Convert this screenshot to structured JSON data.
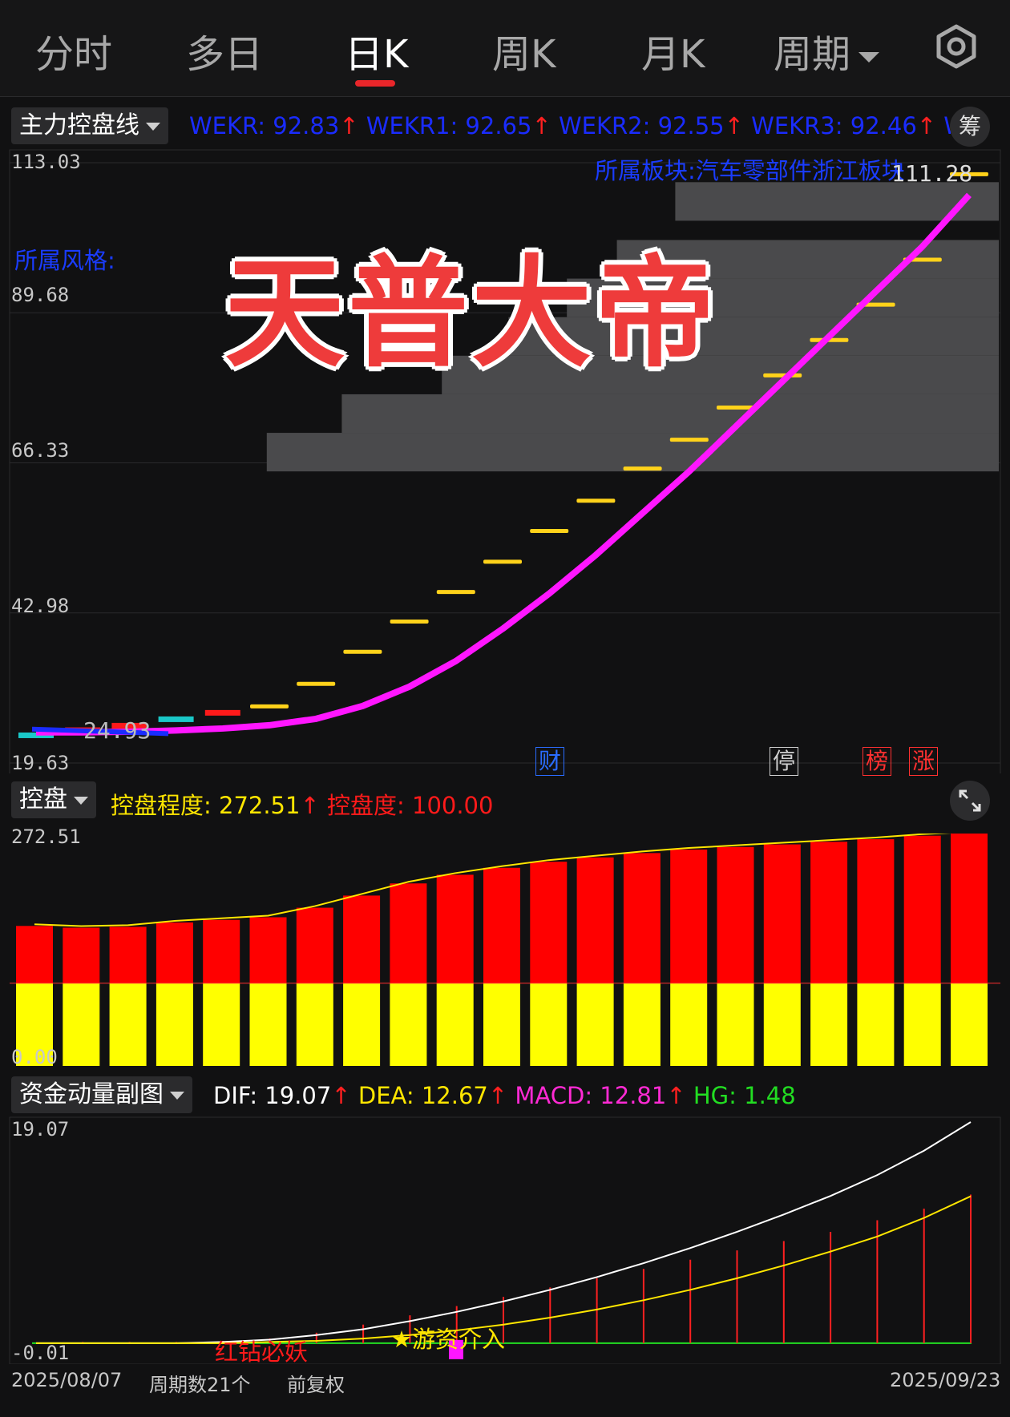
{
  "tabs": [
    {
      "label": "分时",
      "active": false
    },
    {
      "label": "多日",
      "active": false
    },
    {
      "label": "日K",
      "active": true
    },
    {
      "label": "周K",
      "active": false
    },
    {
      "label": "月K",
      "active": false
    },
    {
      "label": "周期",
      "active": false,
      "dropdown": true
    }
  ],
  "settings_icon": "gear-icon",
  "main_panel": {
    "selector": "主力控盘线",
    "indicators": [
      {
        "text": "WEKR: 92.83",
        "color": "#1a2cff"
      },
      {
        "text": "WEKR1: 92.65",
        "color": "#1a2cff"
      },
      {
        "text": "WEKR2: 92.55",
        "color": "#1a2cff"
      },
      {
        "text": "WEKR3: 92.46",
        "color": "#1a2cff"
      },
      {
        "text": "WEK",
        "color": "#1a2cff"
      }
    ],
    "chip_button": "筹",
    "y_labels": [
      "113.03",
      "89.68",
      "66.33",
      "42.98",
      "19.63"
    ],
    "style_label": "所属风格:",
    "sector_label": "所属板块:汽车零部件浙江板块",
    "high_label": "111.28",
    "low_label": "24.93",
    "title": "天普大帝",
    "tags": [
      {
        "text": "财",
        "color": "#2a6cff"
      },
      {
        "text": "停",
        "color": "#cfcfcf"
      },
      {
        "text": "榜",
        "color": "#ff3030"
      },
      {
        "text": "涨",
        "color": "#ff3030"
      }
    ]
  },
  "control_panel": {
    "selector": "控盘",
    "indicators": [
      {
        "text": "控盘程度: 272.51",
        "color": "#ffe600"
      },
      {
        "text": "控盘度: 100.00",
        "color": "#ff1a1a"
      }
    ],
    "y_top": "272.51",
    "y_bottom": "0.00",
    "expand_icon": "expand-icon"
  },
  "macd_panel": {
    "selector": "资金动量副图",
    "indicators": [
      {
        "text": "DIF: 19.07",
        "color": "#ffffff"
      },
      {
        "text": "DEA: 12.67",
        "color": "#ffe600"
      },
      {
        "text": "MACD: 12.81",
        "color": "#ff2ad4"
      },
      {
        "text": "HG: 1.48",
        "color": "#22dd22"
      }
    ],
    "y_top": "19.07",
    "y_bottom": "-0.01",
    "red_label": "红钻必妖",
    "yellow_label": "★游资介入"
  },
  "footer": {
    "start_date": "2025/08/07",
    "period_count": "周期数21个",
    "adjust": "前复权",
    "end_date": "2025/09/23"
  },
  "chart_data": [
    {
      "type": "line",
      "title": "",
      "ylim": [
        19.63,
        113.03
      ],
      "x": [
        1,
        2,
        3,
        4,
        5,
        6,
        7,
        8,
        9,
        10,
        11,
        12,
        13,
        14,
        15,
        16,
        17,
        18,
        19,
        20,
        21
      ],
      "series": [
        {
          "name": "",
          "color": "#ff16ff",
          "values": [
            24.4,
            24.4,
            24.5,
            24.7,
            25,
            25.5,
            26.5,
            28.5,
            31.5,
            35.5,
            40.5,
            46,
            52,
            58.5,
            65,
            72,
            79,
            86,
            93,
            100,
            108
          ]
        },
        {
          "name": "",
          "color": "#ffd21a",
          "values": [
            24,
            24.8,
            25.5,
            26.5,
            27.5,
            28.5,
            32,
            37,
            41.7,
            46.3,
            51,
            55.8,
            60.5,
            65.5,
            70,
            75,
            80,
            85.5,
            91,
            98,
            111.3
          ]
        }
      ]
    },
    {
      "type": "bar",
      "title": "",
      "ylim": [
        0,
        272.51
      ],
      "categories": [
        "1",
        "2",
        "3",
        "4",
        "5",
        "6",
        "7",
        "8",
        "9",
        "10",
        "11",
        "12",
        "13",
        "14",
        "15",
        "16",
        "17",
        "18",
        "19",
        "20",
        "21"
      ],
      "series": [
        {
          "name": "控盘度",
          "color": "#ffff00",
          "values": [
            100,
            100,
            100,
            100,
            100,
            100,
            100,
            100,
            100,
            100,
            100,
            100,
            100,
            100,
            100,
            100,
            100,
            100,
            100,
            100,
            100
          ]
        },
        {
          "name": "控盘程度",
          "color": "#ff0000",
          "values": [
            166,
            164,
            165,
            170,
            173,
            176,
            187,
            201,
            215,
            225,
            233,
            240,
            245,
            250,
            254,
            257,
            260,
            263,
            266,
            270,
            272.51
          ]
        }
      ]
    },
    {
      "type": "line",
      "title": "",
      "ylim": [
        -0.01,
        19.07
      ],
      "x": [
        1,
        2,
        3,
        4,
        5,
        6,
        7,
        8,
        9,
        10,
        11,
        12,
        13,
        14,
        15,
        16,
        17,
        18,
        19,
        20,
        21
      ],
      "series": [
        {
          "name": "DIF",
          "color": "#ffffff",
          "values": [
            0,
            0,
            0,
            0,
            0.1,
            0.3,
            0.7,
            1.2,
            1.9,
            2.7,
            3.6,
            4.6,
            5.7,
            6.9,
            8.2,
            9.6,
            11.1,
            12.7,
            14.5,
            16.6,
            19.07
          ]
        },
        {
          "name": "DEA",
          "color": "#ffe600",
          "values": [
            0,
            0,
            0,
            0,
            0,
            0.1,
            0.2,
            0.4,
            0.7,
            1.1,
            1.6,
            2.2,
            2.9,
            3.7,
            4.6,
            5.6,
            6.7,
            7.9,
            9.2,
            10.8,
            12.67
          ]
        },
        {
          "name": "MACD",
          "color": "#ff2020",
          "values": [
            0,
            0.1,
            0.1,
            0.1,
            0.2,
            0.4,
            0.9,
            1.6,
            2.4,
            3.2,
            4,
            4.8,
            5.6,
            6.4,
            7.2,
            8,
            8.8,
            9.6,
            10.6,
            11.6,
            12.81
          ]
        }
      ]
    }
  ]
}
